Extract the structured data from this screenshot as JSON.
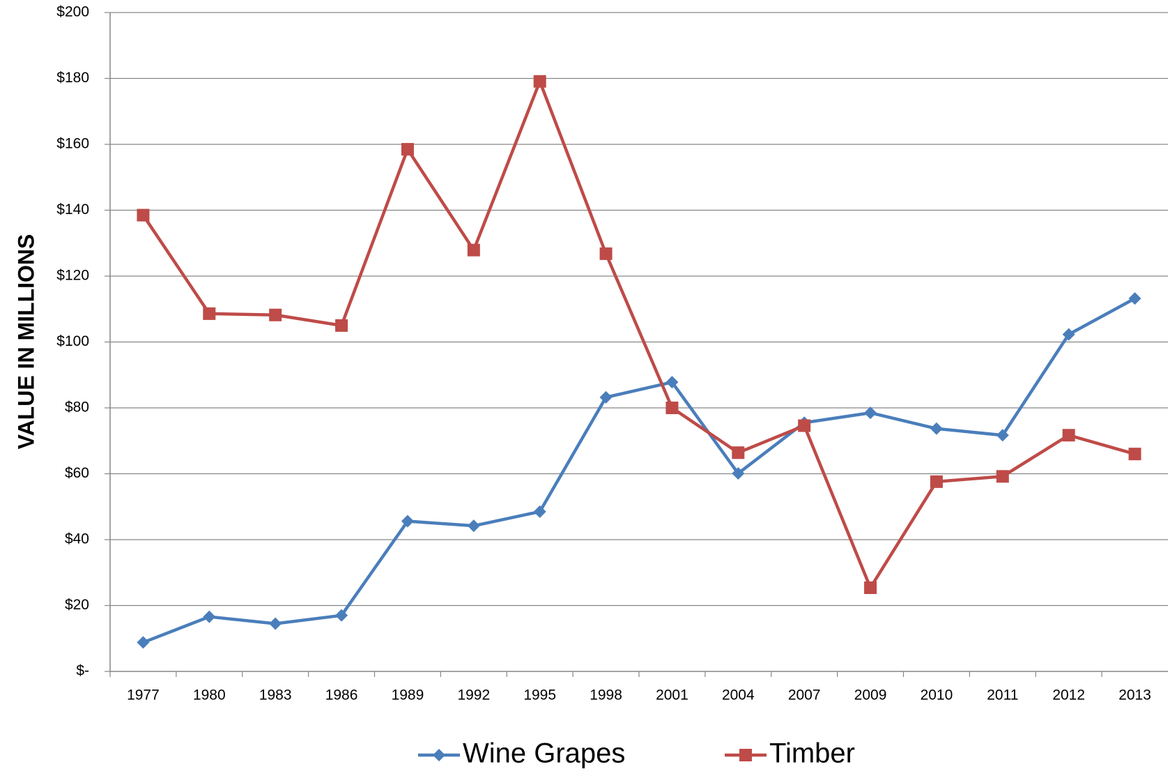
{
  "chart_data": {
    "type": "line",
    "y_axis_label": "VALUE IN MILLIONS",
    "categories": [
      "1977",
      "1980",
      "1983",
      "1986",
      "1989",
      "1992",
      "1995",
      "1998",
      "2001",
      "2004",
      "2007",
      "2009",
      "2010",
      "2011",
      "2012",
      "2013"
    ],
    "series": [
      {
        "name": "Wine Grapes",
        "color": "#4a7ebb",
        "marker": "diamond",
        "values": [
          8.8,
          16.6,
          14.5,
          17,
          45.6,
          44.2,
          48.5,
          83.2,
          87.8,
          60.1,
          75.5,
          78.5,
          73.7,
          71.7,
          102.3,
          113.2
        ]
      },
      {
        "name": "Timber",
        "color": "#be4b48",
        "marker": "square",
        "values": [
          138.5,
          108.6,
          108.2,
          105,
          158.5,
          127.9,
          179.1,
          126.8,
          80,
          66.4,
          74.6,
          25.4,
          57.6,
          59.2,
          71.7,
          66
        ]
      }
    ],
    "ylim": [
      0,
      200
    ],
    "yticks": [
      {
        "value": 0,
        "label": "$-"
      },
      {
        "value": 20,
        "label": "$20"
      },
      {
        "value": 40,
        "label": "$40"
      },
      {
        "value": 60,
        "label": "$60"
      },
      {
        "value": 80,
        "label": "$80"
      },
      {
        "value": 100,
        "label": "$100"
      },
      {
        "value": 120,
        "label": "$120"
      },
      {
        "value": 140,
        "label": "$140"
      },
      {
        "value": 160,
        "label": "$160"
      },
      {
        "value": 180,
        "label": "$180"
      },
      {
        "value": 200,
        "label": "$200"
      }
    ],
    "grid": true,
    "legend": "bottom"
  }
}
